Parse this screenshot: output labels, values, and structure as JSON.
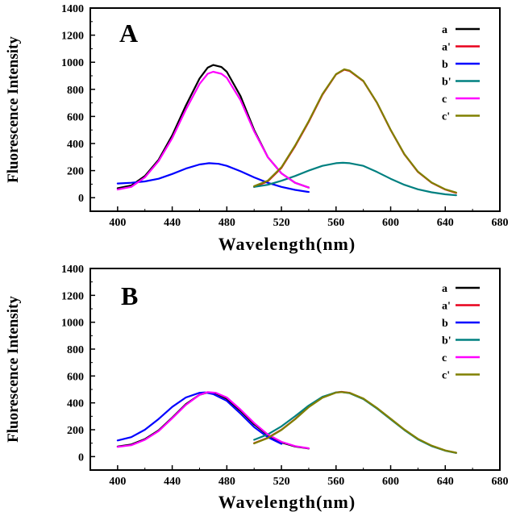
{
  "chart_data": [
    {
      "type": "line",
      "panel_label": "A",
      "xlabel": "Wavelength(nm)",
      "ylabel": "Fluorescence Intensity",
      "xlim": [
        380,
        680
      ],
      "ylim": [
        -100,
        1400
      ],
      "xticks": [
        400,
        440,
        480,
        520,
        560,
        600,
        640,
        680
      ],
      "yticks": [
        0,
        200,
        400,
        600,
        800,
        1000,
        1200,
        1400
      ],
      "legend_position": "top-right",
      "series": [
        {
          "name": "a",
          "color": "#000000",
          "points": [
            [
              400,
              70
            ],
            [
              410,
              90
            ],
            [
              420,
              160
            ],
            [
              430,
              280
            ],
            [
              440,
              460
            ],
            [
              450,
              680
            ],
            [
              460,
              880
            ],
            [
              466,
              960
            ],
            [
              470,
              980
            ],
            [
              476,
              965
            ],
            [
              480,
              930
            ],
            [
              490,
              750
            ],
            [
              500,
              500
            ],
            [
              510,
              300
            ],
            [
              520,
              180
            ],
            [
              530,
              110
            ],
            [
              540,
              75
            ]
          ]
        },
        {
          "name": "a'",
          "color": "#e8001c",
          "points": [
            [
              500,
              80
            ],
            [
              510,
              120
            ],
            [
              520,
              220
            ],
            [
              530,
              380
            ],
            [
              540,
              560
            ],
            [
              550,
              760
            ],
            [
              560,
              910
            ],
            [
              566,
              945
            ],
            [
              570,
              935
            ],
            [
              580,
              860
            ],
            [
              590,
              700
            ],
            [
              600,
              500
            ],
            [
              610,
              320
            ],
            [
              620,
              190
            ],
            [
              630,
              110
            ],
            [
              640,
              60
            ],
            [
              648,
              35
            ]
          ]
        },
        {
          "name": "b",
          "color": "#0000ff",
          "points": [
            [
              400,
              105
            ],
            [
              410,
              110
            ],
            [
              420,
              120
            ],
            [
              430,
              140
            ],
            [
              440,
              175
            ],
            [
              450,
              215
            ],
            [
              460,
              245
            ],
            [
              467,
              255
            ],
            [
              474,
              250
            ],
            [
              480,
              235
            ],
            [
              490,
              195
            ],
            [
              500,
              150
            ],
            [
              510,
              110
            ],
            [
              520,
              80
            ],
            [
              530,
              58
            ],
            [
              540,
              42
            ]
          ]
        },
        {
          "name": "b'",
          "color": "#008080",
          "points": [
            [
              500,
              80
            ],
            [
              510,
              95
            ],
            [
              520,
              125
            ],
            [
              530,
              160
            ],
            [
              540,
              200
            ],
            [
              550,
              235
            ],
            [
              560,
              255
            ],
            [
              565,
              258
            ],
            [
              570,
              255
            ],
            [
              580,
              235
            ],
            [
              590,
              190
            ],
            [
              600,
              140
            ],
            [
              610,
              95
            ],
            [
              620,
              62
            ],
            [
              630,
              40
            ],
            [
              640,
              25
            ],
            [
              648,
              18
            ]
          ]
        },
        {
          "name": "c",
          "color": "#ff00ff",
          "points": [
            [
              400,
              60
            ],
            [
              410,
              80
            ],
            [
              420,
              150
            ],
            [
              430,
              270
            ],
            [
              440,
              440
            ],
            [
              450,
              650
            ],
            [
              460,
              840
            ],
            [
              466,
              915
            ],
            [
              470,
              930
            ],
            [
              476,
              915
            ],
            [
              480,
              885
            ],
            [
              490,
              720
            ],
            [
              500,
              490
            ],
            [
              510,
              300
            ],
            [
              520,
              180
            ],
            [
              530,
              110
            ],
            [
              540,
              75
            ]
          ]
        },
        {
          "name": "c'",
          "color": "#808000",
          "points": [
            [
              500,
              85
            ],
            [
              510,
              125
            ],
            [
              520,
              225
            ],
            [
              530,
              385
            ],
            [
              540,
              565
            ],
            [
              550,
              765
            ],
            [
              560,
              912
            ],
            [
              566,
              948
            ],
            [
              570,
              938
            ],
            [
              580,
              862
            ],
            [
              590,
              702
            ],
            [
              600,
              502
            ],
            [
              610,
              322
            ],
            [
              620,
              192
            ],
            [
              630,
              112
            ],
            [
              640,
              62
            ],
            [
              648,
              38
            ]
          ]
        }
      ]
    },
    {
      "type": "line",
      "panel_label": "B",
      "xlabel": "Wavelength(nm)",
      "ylabel": "Fluorescence Intensity",
      "xlim": [
        380,
        680
      ],
      "ylim": [
        -100,
        1400
      ],
      "xticks": [
        400,
        440,
        480,
        520,
        560,
        600,
        640,
        680
      ],
      "yticks": [
        0,
        200,
        400,
        600,
        800,
        1000,
        1200,
        1400
      ],
      "legend_position": "top-right",
      "series": [
        {
          "name": "a",
          "color": "#000000",
          "points": [
            [
              400,
              75
            ],
            [
              410,
              90
            ],
            [
              420,
              130
            ],
            [
              430,
              195
            ],
            [
              440,
              290
            ],
            [
              450,
              390
            ],
            [
              460,
              460
            ],
            [
              466,
              478
            ],
            [
              472,
              470
            ],
            [
              480,
              430
            ],
            [
              490,
              340
            ],
            [
              500,
              240
            ],
            [
              510,
              160
            ],
            [
              520,
              105
            ],
            [
              530,
              75
            ],
            [
              540,
              60
            ]
          ]
        },
        {
          "name": "a'",
          "color": "#e8001c",
          "points": [
            [
              500,
              100
            ],
            [
              510,
              140
            ],
            [
              520,
              200
            ],
            [
              530,
              280
            ],
            [
              540,
              370
            ],
            [
              550,
              440
            ],
            [
              560,
              478
            ],
            [
              564,
              482
            ],
            [
              570,
              475
            ],
            [
              580,
              430
            ],
            [
              590,
              360
            ],
            [
              600,
              280
            ],
            [
              610,
              200
            ],
            [
              620,
              130
            ],
            [
              630,
              80
            ],
            [
              640,
              45
            ],
            [
              648,
              28
            ]
          ]
        },
        {
          "name": "b",
          "color": "#0000ff",
          "points": [
            [
              400,
              120
            ],
            [
              410,
              145
            ],
            [
              420,
              200
            ],
            [
              430,
              280
            ],
            [
              440,
              370
            ],
            [
              450,
              440
            ],
            [
              460,
              475
            ],
            [
              464,
              478
            ],
            [
              470,
              465
            ],
            [
              480,
              415
            ],
            [
              490,
              320
            ],
            [
              500,
              220
            ],
            [
              510,
              145
            ],
            [
              520,
              95
            ]
          ]
        },
        {
          "name": "b'",
          "color": "#008080",
          "points": [
            [
              500,
              125
            ],
            [
              510,
              165
            ],
            [
              520,
              225
            ],
            [
              530,
              300
            ],
            [
              540,
              380
            ],
            [
              550,
              445
            ],
            [
              560,
              478
            ],
            [
              564,
              480
            ],
            [
              570,
              472
            ],
            [
              580,
              428
            ],
            [
              590,
              358
            ],
            [
              600,
              278
            ],
            [
              610,
              198
            ],
            [
              620,
              128
            ],
            [
              630,
              78
            ],
            [
              640,
              44
            ],
            [
              648,
              27
            ]
          ]
        },
        {
          "name": "c",
          "color": "#ff00ff",
          "points": [
            [
              400,
              72
            ],
            [
              410,
              85
            ],
            [
              420,
              125
            ],
            [
              430,
              190
            ],
            [
              440,
              285
            ],
            [
              450,
              385
            ],
            [
              460,
              460
            ],
            [
              466,
              480
            ],
            [
              472,
              475
            ],
            [
              480,
              440
            ],
            [
              490,
              350
            ],
            [
              500,
              250
            ],
            [
              510,
              165
            ],
            [
              520,
              110
            ],
            [
              530,
              78
            ],
            [
              540,
              62
            ]
          ]
        },
        {
          "name": "c'",
          "color": "#808000",
          "points": [
            [
              500,
              98
            ],
            [
              510,
              138
            ],
            [
              520,
              198
            ],
            [
              530,
              278
            ],
            [
              540,
              368
            ],
            [
              550,
              438
            ],
            [
              560,
              476
            ],
            [
              564,
              480
            ],
            [
              570,
              474
            ],
            [
              580,
              432
            ],
            [
              590,
              362
            ],
            [
              600,
              282
            ],
            [
              610,
              202
            ],
            [
              620,
              132
            ],
            [
              630,
              82
            ],
            [
              640,
              46
            ],
            [
              648,
              29
            ]
          ]
        }
      ]
    }
  ]
}
